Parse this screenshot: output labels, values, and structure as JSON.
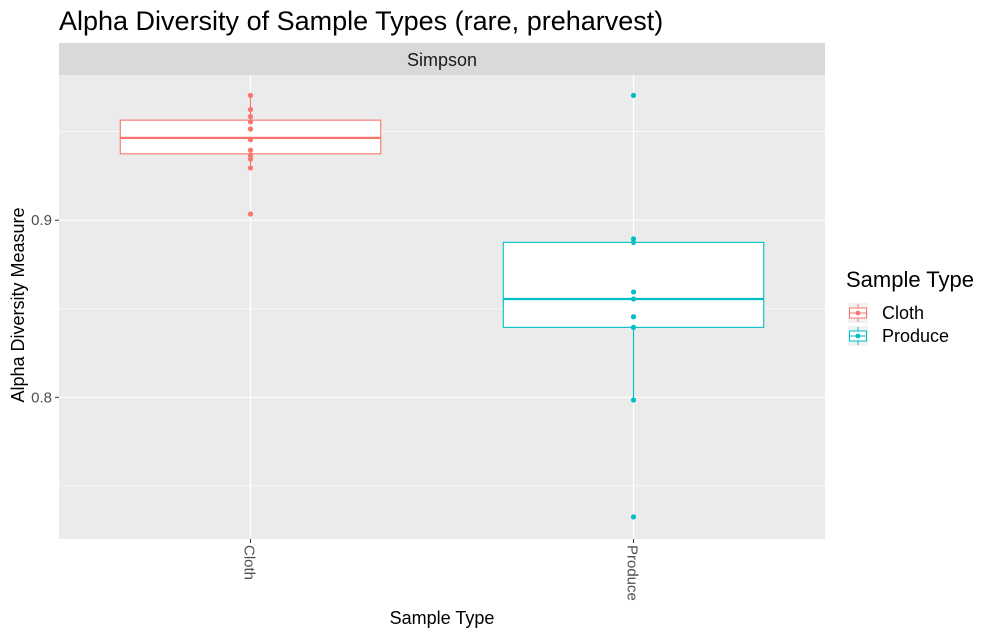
{
  "chart_data": {
    "type": "boxplot",
    "title": "Alpha Diversity of Sample Types (rare, preharvest)",
    "facet_label": "Simpson",
    "xlabel": "Sample Type",
    "ylabel": "Alpha Diversity Measure",
    "categories": [
      "Cloth",
      "Produce"
    ],
    "ylim": [
      0.72,
      0.982
    ],
    "y_ticks": [
      0.8,
      0.9
    ],
    "y_tick_labels": [
      "0.8",
      "0.9"
    ],
    "y_minor_ticks": [
      0.75,
      0.85,
      0.95
    ],
    "grid": true,
    "legend": {
      "title": "Sample Type",
      "position": "right",
      "entries": [
        "Cloth",
        "Produce"
      ]
    },
    "colors": {
      "Cloth": "#F8766D",
      "Produce": "#00BFC4",
      "panel_bg": "#EBEBEB",
      "strip_bg": "#D9D9D9",
      "grid": "#FFFFFF"
    },
    "series": [
      {
        "name": "Cloth",
        "box": {
          "q1": 0.9375,
          "median": 0.9465,
          "q3": 0.9565,
          "whisker_low": 0.9285,
          "whisker_high": 0.9705
        },
        "points": [
          0.9705,
          0.9625,
          0.9585,
          0.9555,
          0.9515,
          0.9455,
          0.9395,
          0.9365,
          0.9345,
          0.9295,
          0.9035
        ]
      },
      {
        "name": "Produce",
        "box": {
          "q1": 0.8395,
          "median": 0.8555,
          "q3": 0.8875,
          "whisker_low": 0.7985,
          "whisker_high": 0.8875
        },
        "points": [
          0.9705,
          0.8895,
          0.8875,
          0.8595,
          0.8555,
          0.8455,
          0.8395,
          0.7985,
          0.7325
        ]
      }
    ]
  }
}
